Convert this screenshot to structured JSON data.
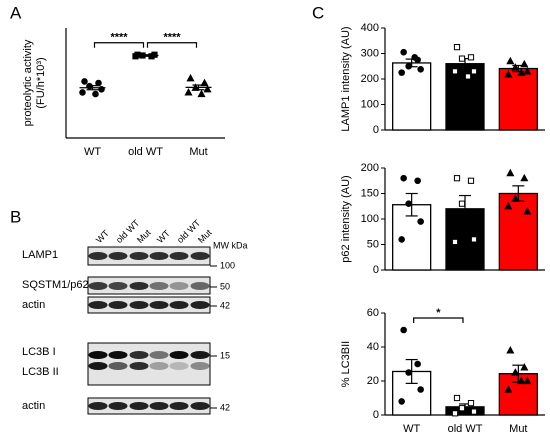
{
  "panel_labels": [
    "A",
    "B",
    "C"
  ],
  "chart_data": [
    {
      "type": "scatter",
      "ylabel": [
        "proteolytic activity",
        "(FU/h*10³)"
      ],
      "categories": [
        "WT",
        "old WT",
        "Mut"
      ],
      "ylim": [
        1,
        8
      ],
      "means": [
        4.2,
        6.25,
        4.22
      ],
      "errors": [
        0.13,
        0.05,
        0.15
      ],
      "points": [
        [
          4.6,
          4.5,
          4.3,
          4.1,
          3.9,
          3.8
        ],
        [
          6.3,
          6.2,
          6.25,
          6.3,
          6.2
        ],
        [
          4.8,
          4.5,
          4.2,
          4.1,
          3.9,
          3.8
        ]
      ],
      "markers": [
        "circle",
        "square",
        "triangle"
      ],
      "marker_filled": [
        true,
        true,
        true
      ],
      "significance": [
        {
          "from": 0,
          "to": 1,
          "label": "****"
        },
        {
          "from": 1,
          "to": 2,
          "label": "****"
        }
      ]
    },
    {
      "type": "bar",
      "ylabel": "LAMP1 intensity (AU)",
      "categories": [
        null,
        null,
        null
      ],
      "ylim": [
        0,
        400
      ],
      "yticks": [
        0,
        100,
        200,
        300,
        400
      ],
      "values": [
        263,
        260,
        241
      ],
      "errors": [
        15,
        20,
        12
      ],
      "colors": [
        "#ffffff",
        "#000000",
        "#ff0000"
      ],
      "points": [
        [
          305,
          275,
          250,
          238,
          225,
          285
        ],
        [
          325,
          285,
          280,
          230,
          230,
          210
        ],
        [
          270,
          258,
          245,
          230,
          218,
          225
        ]
      ],
      "markers": [
        "circle",
        "square",
        "triangle"
      ],
      "marker_filled": [
        true,
        false,
        true
      ]
    },
    {
      "type": "bar",
      "ylabel": "p62 intensity (AU)",
      "categories": [
        null,
        null,
        null
      ],
      "ylim": [
        0,
        200
      ],
      "yticks": [
        0,
        50,
        100,
        150,
        200
      ],
      "values": [
        128,
        120,
        150
      ],
      "errors": [
        22,
        26,
        15
      ],
      "colors": [
        "#ffffff",
        "#000000",
        "#ff0000"
      ],
      "points": [
        [
          180,
          175,
          130,
          95,
          60
        ],
        [
          180,
          175,
          130,
          60,
          55
        ],
        [
          190,
          180,
          140,
          115,
          125
        ]
      ],
      "markers": [
        "circle",
        "square",
        "triangle"
      ],
      "marker_filled": [
        true,
        false,
        true
      ]
    },
    {
      "type": "bar",
      "ylabel": "% LC3BII",
      "categories": [
        "WT",
        "old WT",
        "Mut"
      ],
      "ylim": [
        0,
        60
      ],
      "yticks": [
        0,
        20,
        40,
        60
      ],
      "values": [
        25.6,
        4.8,
        24.3
      ],
      "errors": [
        7,
        1.7,
        5
      ],
      "colors": [
        "#ffffff",
        "#000000",
        "#ff0000"
      ],
      "points": [
        [
          50,
          30,
          25,
          15,
          8
        ],
        [
          10,
          7,
          4,
          2,
          1
        ],
        [
          38,
          28,
          25,
          20,
          15,
          20
        ]
      ],
      "markers": [
        "circle",
        "square",
        "triangle"
      ],
      "marker_filled": [
        true,
        false,
        true
      ],
      "significance": [
        {
          "from": 0,
          "to": 1,
          "label": "*"
        }
      ]
    }
  ],
  "blot": {
    "lanes": [
      "WT",
      "old WT",
      "Mut",
      "WT",
      "old WT",
      "Mut"
    ],
    "mw_header": "MW kDa",
    "rows": [
      {
        "labels": [
          "LAMP1"
        ],
        "mw": "100"
      },
      {
        "labels": [
          "SQSTM1/p62"
        ],
        "mw": "50"
      },
      {
        "labels": [
          "actin"
        ],
        "mw": "42"
      },
      {
        "labels": [
          "LC3B I",
          "LC3B II"
        ],
        "mw": "15"
      },
      {
        "labels": [
          "actin"
        ],
        "mw": "42"
      }
    ]
  }
}
